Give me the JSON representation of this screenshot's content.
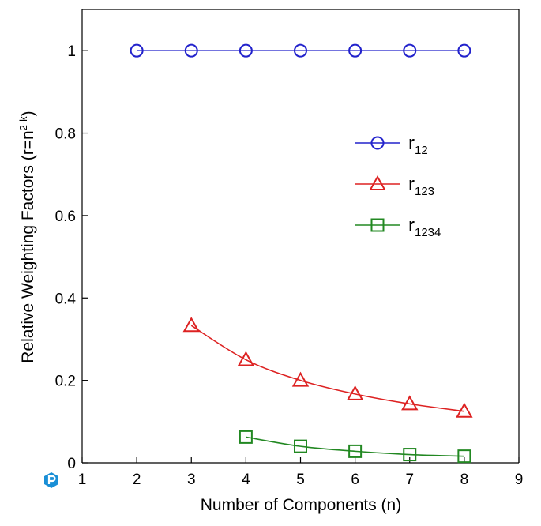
{
  "chart_data": {
    "type": "line",
    "xlabel": "Number of Components (n)",
    "ylabel": "Relative Weighting Factors (r=n",
    "ylabel_sup": "2-k",
    "ylabel_end": ")",
    "xlim": [
      1,
      9
    ],
    "ylim": [
      0,
      1.1
    ],
    "xticks": [
      1,
      2,
      3,
      4,
      5,
      6,
      7,
      8,
      9
    ],
    "yticks": [
      0,
      0.2,
      0.4,
      0.6,
      0.8,
      1
    ],
    "ytick_labels": [
      "0",
      "0.2",
      "0.4",
      "0.6",
      "0.8",
      "1"
    ],
    "grid": false,
    "legend_position": "right",
    "series": [
      {
        "name": "r",
        "name_sub": "12",
        "marker": "circle",
        "color": "#2222cc",
        "x": [
          2,
          3,
          4,
          5,
          6,
          7,
          8
        ],
        "y": [
          1,
          1,
          1,
          1,
          1,
          1,
          1
        ]
      },
      {
        "name": "r",
        "name_sub": "123",
        "marker": "triangle",
        "color": "#dd2222",
        "x": [
          3,
          4,
          5,
          6,
          7,
          8
        ],
        "y": [
          0.333,
          0.25,
          0.2,
          0.167,
          0.143,
          0.125
        ]
      },
      {
        "name": "r",
        "name_sub": "1234",
        "marker": "square",
        "color": "#228822",
        "x": [
          4,
          5,
          6,
          7,
          8
        ],
        "y": [
          0.0625,
          0.04,
          0.028,
          0.02,
          0.016
        ]
      }
    ]
  },
  "logo_icon": "logo-icon"
}
